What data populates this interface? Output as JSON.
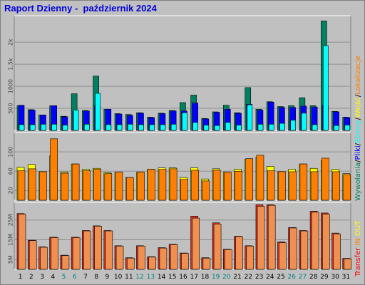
{
  "title": "Raport Dzienny -  październik 2024",
  "colors": {
    "weekday": "#000000",
    "weekend": "#008080",
    "visits": "#00ffff",
    "pages": "#0000ff",
    "hits": "#008060",
    "sites": "#ffff00",
    "traffic": "#ff8000",
    "in": "#ff8000",
    "out": "#ff0000"
  },
  "chart_data": [
    {
      "type": "bar",
      "panel": "top",
      "categories": [
        "1",
        "2",
        "3",
        "4",
        "5",
        "6",
        "7",
        "8",
        "9",
        "10",
        "11",
        "12",
        "13",
        "14",
        "15",
        "16",
        "17",
        "18",
        "19",
        "20",
        "21",
        "22",
        "23",
        "24",
        "25",
        "26",
        "27",
        "28",
        "29",
        "30",
        "31"
      ],
      "weekend_days": [
        "5",
        "6",
        "12",
        "13",
        "19",
        "20",
        "26",
        "27"
      ],
      "ylim": [
        0,
        2600
      ],
      "yticks": [
        "500",
        "1000",
        "1,5k",
        "2k"
      ],
      "series": [
        {
          "name": "Wywołania",
          "values": [
            560,
            470,
            350,
            560,
            320,
            830,
            450,
            1230,
            480,
            380,
            360,
            400,
            300,
            390,
            450,
            630,
            800,
            270,
            420,
            570,
            400,
            970,
            480,
            650,
            540,
            560,
            740,
            560,
            2480,
            430,
            300
          ]
        },
        {
          "name": "Pliki",
          "values": [
            570,
            460,
            350,
            560,
            310,
            430,
            440,
            560,
            480,
            370,
            340,
            390,
            290,
            380,
            440,
            440,
            620,
            260,
            410,
            480,
            390,
            590,
            460,
            640,
            520,
            520,
            550,
            530,
            570,
            420,
            290
          ]
        },
        {
          "name": "Strony",
          "values": [
            130,
            130,
            140,
            140,
            120,
            460,
            140,
            840,
            130,
            130,
            140,
            130,
            130,
            130,
            140,
            400,
            180,
            120,
            110,
            180,
            120,
            580,
            140,
            140,
            160,
            230,
            390,
            130,
            1920,
            110,
            120
          ]
        }
      ]
    },
    {
      "type": "bar",
      "panel": "middle",
      "categories": [
        "1",
        "2",
        "3",
        "4",
        "5",
        "6",
        "7",
        "8",
        "9",
        "10",
        "11",
        "12",
        "13",
        "14",
        "15",
        "16",
        "17",
        "18",
        "19",
        "20",
        "21",
        "22",
        "23",
        "24",
        "25",
        "26",
        "27",
        "28",
        "29",
        "30",
        "31"
      ],
      "ylim": [
        0,
        140
      ],
      "yticks": [
        "20",
        "60",
        "100"
      ],
      "series": [
        {
          "name": "Lokalizacje",
          "values": [
            68,
            74,
            59,
            92,
            58,
            75,
            64,
            66,
            57,
            58,
            47,
            58,
            64,
            67,
            67,
            47,
            67,
            44,
            65,
            58,
            64,
            85,
            89,
            70,
            59,
            64,
            75,
            66,
            82,
            64,
            55
          ]
        },
        {
          "name": "Wejść",
          "values": [
            61,
            65,
            59,
            127,
            56,
            75,
            61,
            64,
            55,
            58,
            47,
            58,
            64,
            64,
            65,
            43,
            62,
            40,
            62,
            58,
            60,
            86,
            93,
            61,
            59,
            59,
            75,
            59,
            87,
            59,
            53
          ]
        }
      ]
    },
    {
      "type": "bar",
      "panel": "bottom",
      "categories": [
        "1",
        "2",
        "3",
        "4",
        "5",
        "6",
        "7",
        "8",
        "9",
        "10",
        "11",
        "12",
        "13",
        "14",
        "15",
        "16",
        "17",
        "18",
        "19",
        "20",
        "21",
        "22",
        "23",
        "24",
        "25",
        "26",
        "27",
        "28",
        "29",
        "30",
        "31"
      ],
      "ylim": [
        0,
        3.4
      ],
      "yticks": [
        "5M",
        "15M",
        "25M"
      ],
      "series": [
        {
          "name": "Transfer",
          "values": [
            2.83,
            1.48,
            1.14,
            1.63,
            0.72,
            1.63,
            1.97,
            2.21,
            1.97,
            1.2,
            0.59,
            1.2,
            0.64,
            1.1,
            1.27,
            0.83,
            2.7,
            0.59,
            2.36,
            1.02,
            1.68,
            1.2,
            3.28,
            3.28,
            1.39,
            2.12,
            1.97,
            2.95,
            2.86,
            1.84,
            0.56
          ]
        },
        {
          "name": "IN",
          "values": [
            2.8,
            1.46,
            1.12,
            1.61,
            0.7,
            1.61,
            1.95,
            2.19,
            1.95,
            1.18,
            0.57,
            1.18,
            0.62,
            1.08,
            1.25,
            0.81,
            2.6,
            0.57,
            2.3,
            1.0,
            1.66,
            1.18,
            3.2,
            3.25,
            1.35,
            2.1,
            1.95,
            2.9,
            2.8,
            1.8,
            0.54
          ]
        },
        {
          "name": "OUT",
          "values": [
            0.02,
            0.02,
            0.02,
            0.02,
            0.02,
            0.02,
            0.02,
            0.02,
            0.02,
            0.02,
            0.02,
            0.02,
            0.02,
            0.02,
            0.02,
            0.02,
            0.02,
            0.02,
            0.02,
            0.02,
            0.02,
            0.02,
            0.02,
            0.02,
            0.02,
            0.02,
            0.02,
            0.02,
            0.02,
            0.02,
            0.02
          ]
        }
      ]
    }
  ],
  "legend": {
    "right_top": [
      {
        "text": "Wywołania",
        "color": "#008060"
      },
      {
        "text": "/",
        "color": "#000000"
      },
      {
        "text": "Pliki",
        "color": "#0000ff"
      },
      {
        "text": "/",
        "color": "#000000"
      },
      {
        "text": "Strony",
        "color": "#00ffff"
      },
      {
        "text": "/",
        "color": "#000000"
      },
      {
        "text": "Wejść",
        "color": "#ffff00"
      },
      {
        "text": "/",
        "color": "#000000"
      },
      {
        "text": "Lokalizacje",
        "color": "#ff8000"
      }
    ],
    "right_bottom": [
      {
        "text": "Transfer",
        "color": "#ff0000"
      },
      {
        "text": "IN",
        "color": "#ff8000"
      },
      {
        "text": "OUT",
        "color": "#ffff00"
      }
    ]
  }
}
